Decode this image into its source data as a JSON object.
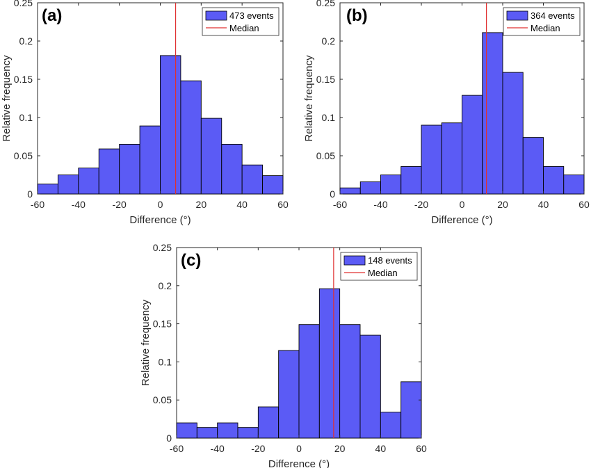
{
  "chart_data": [
    {
      "type": "bar",
      "panel": "(a)",
      "xlabel": "Difference (°)",
      "ylabel": "Relative frequency",
      "xlim": [
        -60,
        60
      ],
      "ylim": [
        0,
        0.25
      ],
      "xticks": [
        "-60",
        "-40",
        "-20",
        "0",
        "20",
        "40",
        "60"
      ],
      "yticks": [
        "0",
        "0.05",
        "0.1",
        "0.15",
        "0.2",
        "0.25"
      ],
      "bin_edges": [
        -60,
        -50,
        -40,
        -30,
        -20,
        -10,
        0,
        10,
        20,
        30,
        40,
        50,
        60
      ],
      "values": [
        0.013,
        0.025,
        0.034,
        0.059,
        0.065,
        0.089,
        0.181,
        0.148,
        0.099,
        0.065,
        0.038,
        0.024
      ],
      "median": 7.5,
      "legend": [
        "473 events",
        "Median"
      ],
      "legend_position": "top-right",
      "bar_color": "#5b5bf5",
      "median_color": "#e03030"
    },
    {
      "type": "bar",
      "panel": "(b)",
      "xlabel": "Difference (°)",
      "ylabel": "Relative frequency",
      "xlim": [
        -60,
        60
      ],
      "ylim": [
        0,
        0.25
      ],
      "xticks": [
        "-60",
        "-40",
        "-20",
        "0",
        "20",
        "40",
        "60"
      ],
      "yticks": [
        "0",
        "0.05",
        "0.1",
        "0.15",
        "0.2",
        "0.25"
      ],
      "bin_edges": [
        -60,
        -50,
        -40,
        -30,
        -20,
        -10,
        0,
        10,
        20,
        30,
        40,
        50,
        60
      ],
      "values": [
        0.008,
        0.016,
        0.025,
        0.036,
        0.09,
        0.093,
        0.129,
        0.211,
        0.159,
        0.074,
        0.036,
        0.025
      ],
      "median": 12,
      "legend": [
        "364 events",
        "Median"
      ],
      "legend_position": "top-right",
      "bar_color": "#5b5bf5",
      "median_color": "#e03030"
    },
    {
      "type": "bar",
      "panel": "(c)",
      "xlabel": "Difference (°)",
      "ylabel": "Relative frequency",
      "xlim": [
        -60,
        60
      ],
      "ylim": [
        0,
        0.25
      ],
      "xticks": [
        "-60",
        "-40",
        "-20",
        "0",
        "20",
        "40",
        "60"
      ],
      "yticks": [
        "0",
        "0.05",
        "0.1",
        "0.15",
        "0.2",
        "0.25"
      ],
      "bin_edges": [
        -60,
        -50,
        -40,
        -30,
        -20,
        -10,
        0,
        10,
        20,
        30,
        40,
        50,
        60
      ],
      "values": [
        0.02,
        0.014,
        0.02,
        0.014,
        0.041,
        0.115,
        0.149,
        0.196,
        0.149,
        0.135,
        0.034,
        0.074
      ],
      "median": 17,
      "legend": [
        "148 events",
        "Median"
      ],
      "legend_position": "top-right",
      "bar_color": "#5b5bf5",
      "median_color": "#e03030"
    }
  ]
}
